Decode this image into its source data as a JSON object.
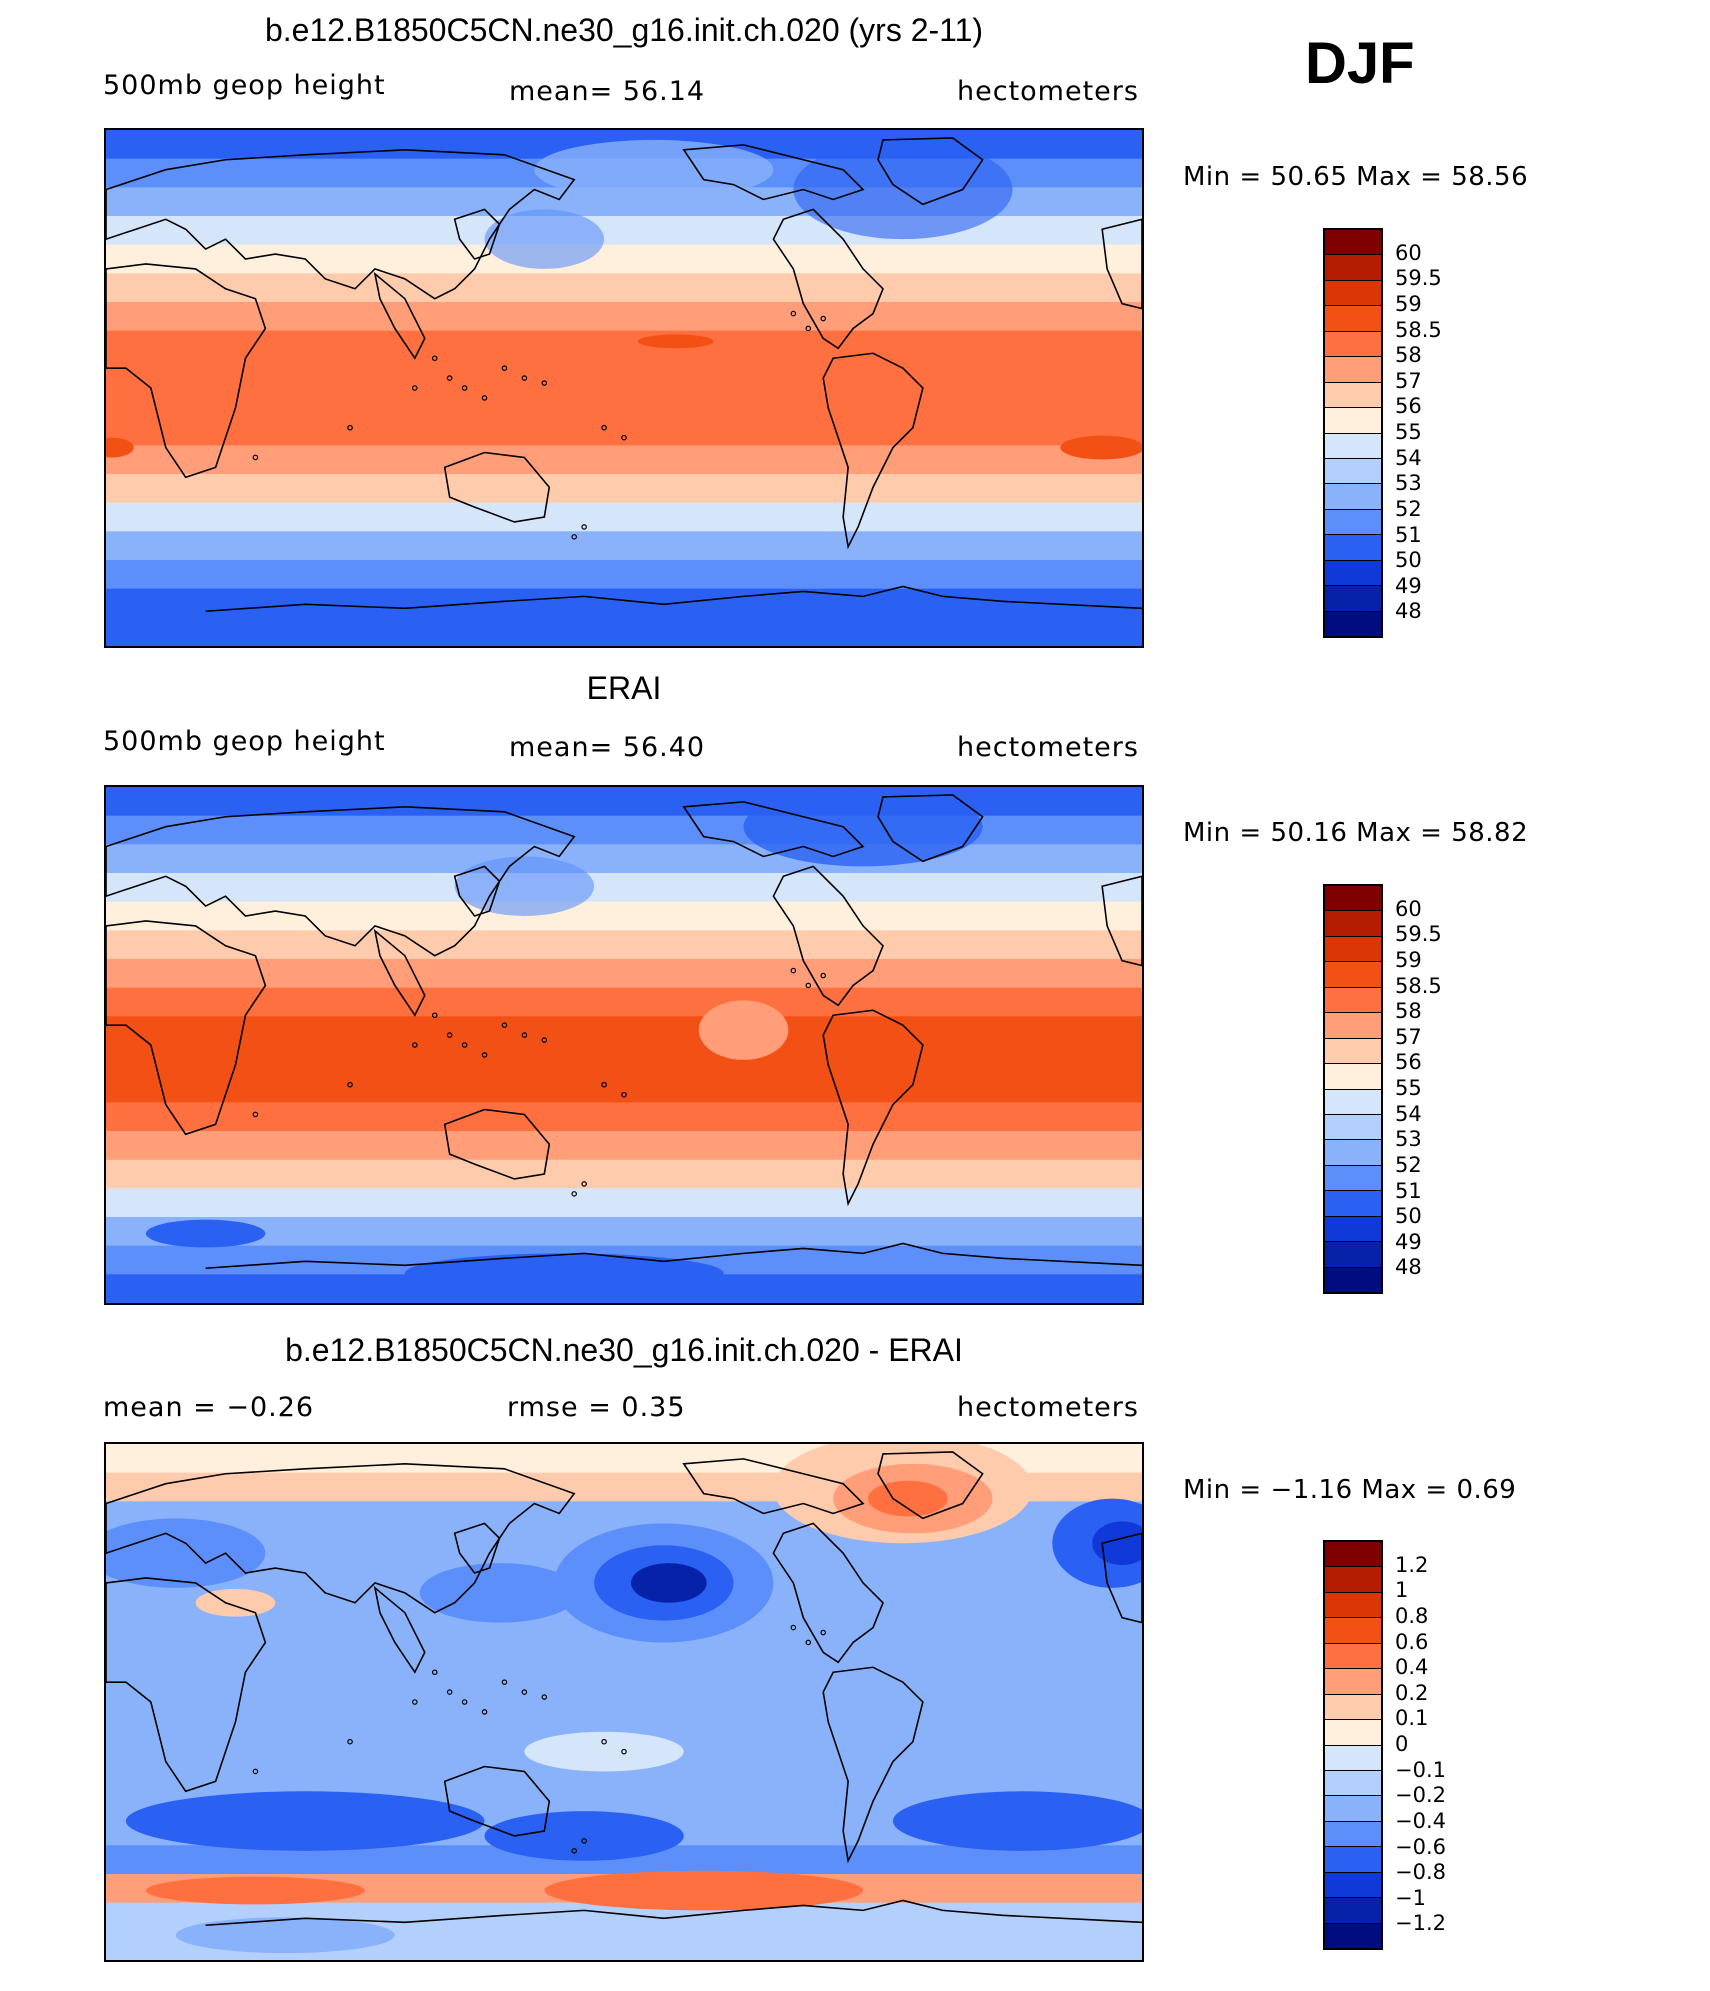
{
  "season": "DJF",
  "panels": [
    {
      "id": "model",
      "title": "b.e12.B1850C5CN.ne30_g16.init.ch.020 (yrs 2-11)",
      "left_label": "500mb geop height",
      "center_label": "mean=   56.14",
      "right_label": "hectometers",
      "minmax": "Min =   50.65 Max =   58.56",
      "colorbar": {
        "labels": [
          "60",
          "59.5",
          "59",
          "58.5",
          "58",
          "57",
          "56",
          "55",
          "54",
          "53",
          "52",
          "51",
          "50",
          "49",
          "48"
        ],
        "colors": [
          "#7f0000",
          "#b51d02",
          "#d93806",
          "#f25014",
          "#ff7040",
          "#ff9e78",
          "#ffcbad",
          "#fff0dd",
          "#d5e6fb",
          "#b3cffb",
          "#8ab2fb",
          "#5d8ffa",
          "#2b61f2",
          "#0f3ad9",
          "#0622a8",
          "#000c80"
        ]
      },
      "map_fields": {
        "zonal_levels": [
          "#2b61f2",
          "#5d8ffa",
          "#8ab2fb",
          "#d5e6fb",
          "#fff0dd",
          "#ffcbad",
          "#ff9e78",
          "#ff7040",
          "#ff7040",
          "#ff7040",
          "#ff7040",
          "#ff9e78",
          "#ffcbad",
          "#d5e6fb",
          "#8ab2fb",
          "#5d8ffa",
          "#2b61f2",
          "#2b61f2"
        ]
      }
    },
    {
      "id": "obs",
      "title": "ERAI",
      "left_label": "500mb geop height",
      "center_label": "mean=   56.40",
      "right_label": "hectometers",
      "minmax": "Min =   50.16 Max =   58.82",
      "colorbar": {
        "labels": [
          "60",
          "59.5",
          "59",
          "58.5",
          "58",
          "57",
          "56",
          "55",
          "54",
          "53",
          "52",
          "51",
          "50",
          "49",
          "48"
        ],
        "colors": [
          "#7f0000",
          "#b51d02",
          "#d93806",
          "#f25014",
          "#ff7040",
          "#ff9e78",
          "#ffcbad",
          "#fff0dd",
          "#d5e6fb",
          "#b3cffb",
          "#8ab2fb",
          "#5d8ffa",
          "#2b61f2",
          "#0f3ad9",
          "#0622a8",
          "#000c80"
        ]
      },
      "map_fields": {
        "zonal_levels": [
          "#2b61f2",
          "#5d8ffa",
          "#8ab2fb",
          "#d5e6fb",
          "#fff0dd",
          "#ffcbad",
          "#ff9e78",
          "#ff7040",
          "#f25014",
          "#f25014",
          "#f25014",
          "#ff7040",
          "#ff9e78",
          "#ffcbad",
          "#d5e6fb",
          "#8ab2fb",
          "#5d8ffa",
          "#2b61f2"
        ]
      }
    },
    {
      "id": "diff",
      "title": "b.e12.B1850C5CN.ne30_g16.init.ch.020 - ERAI",
      "left_label": "mean =   −0.26",
      "center_label": "rmse =    0.35",
      "right_label": "hectometers",
      "minmax": "Min =  −1.16 Max =    0.69",
      "colorbar": {
        "labels": [
          "1.2",
          "1",
          "0.8",
          "0.6",
          "0.4",
          "0.2",
          "0.1",
          "0",
          "−0.1",
          "−0.2",
          "−0.4",
          "−0.6",
          "−0.8",
          "−1",
          "−1.2"
        ],
        "colors": [
          "#7f0000",
          "#b51d02",
          "#d93806",
          "#f25014",
          "#ff7040",
          "#ff9e78",
          "#ffcbad",
          "#fff0dd",
          "#d5e6fb",
          "#b3cffb",
          "#8ab2fb",
          "#5d8ffa",
          "#2b61f2",
          "#0f3ad9",
          "#0622a8",
          "#000c80"
        ]
      },
      "map_fields": {
        "zonal_levels": [
          "#fff0dd",
          "#ffcbad",
          "#8ab2fb",
          "#8ab2fb",
          "#8ab2fb",
          "#8ab2fb",
          "#8ab2fb",
          "#8ab2fb",
          "#8ab2fb",
          "#8ab2fb",
          "#8ab2fb",
          "#8ab2fb",
          "#8ab2fb",
          "#8ab2fb",
          "#5d8ffa",
          "#ff9e78",
          "#b3cffb",
          "#b3cffb"
        ]
      }
    }
  ]
}
